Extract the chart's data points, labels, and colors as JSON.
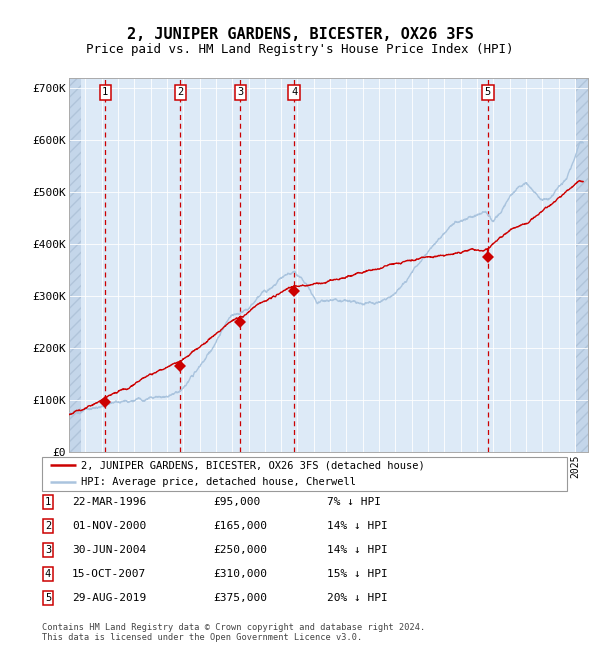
{
  "title": "2, JUNIPER GARDENS, BICESTER, OX26 3FS",
  "subtitle": "Price paid vs. HM Land Registry's House Price Index (HPI)",
  "ylim": [
    0,
    720000
  ],
  "yticks": [
    0,
    100000,
    200000,
    300000,
    400000,
    500000,
    600000,
    700000
  ],
  "ytick_labels": [
    "£0",
    "£100K",
    "£200K",
    "£300K",
    "£400K",
    "£500K",
    "£600K",
    "£700K"
  ],
  "xlim_start": 1994.0,
  "xlim_end": 2025.8,
  "hpi_color": "#aac4de",
  "sale_color": "#cc0000",
  "background_color": "#ddeaf7",
  "grid_color": "#ffffff",
  "dashed_line_color": "#cc0000",
  "sale_points": [
    {
      "year": 1996.22,
      "price": 95000,
      "label": "1"
    },
    {
      "year": 2000.83,
      "price": 165000,
      "label": "2"
    },
    {
      "year": 2004.5,
      "price": 250000,
      "label": "3"
    },
    {
      "year": 2007.79,
      "price": 310000,
      "label": "4"
    },
    {
      "year": 2019.66,
      "price": 375000,
      "label": "5"
    }
  ],
  "table_rows": [
    {
      "num": "1",
      "date": "22-MAR-1996",
      "price": "£95,000",
      "hpi": "7% ↓ HPI"
    },
    {
      "num": "2",
      "date": "01-NOV-2000",
      "price": "£165,000",
      "hpi": "14% ↓ HPI"
    },
    {
      "num": "3",
      "date": "30-JUN-2004",
      "price": "£250,000",
      "hpi": "14% ↓ HPI"
    },
    {
      "num": "4",
      "date": "15-OCT-2007",
      "price": "£310,000",
      "hpi": "15% ↓ HPI"
    },
    {
      "num": "5",
      "date": "29-AUG-2019",
      "price": "£375,000",
      "hpi": "20% ↓ HPI"
    }
  ],
  "legend_label_red": "2, JUNIPER GARDENS, BICESTER, OX26 3FS (detached house)",
  "legend_label_blue": "HPI: Average price, detached house, Cherwell",
  "footer": "Contains HM Land Registry data © Crown copyright and database right 2024.\nThis data is licensed under the Open Government Licence v3.0.",
  "title_fontsize": 11,
  "subtitle_fontsize": 9,
  "tick_fontsize": 8,
  "hpi_linewidth": 1.0,
  "sale_linewidth": 1.0
}
